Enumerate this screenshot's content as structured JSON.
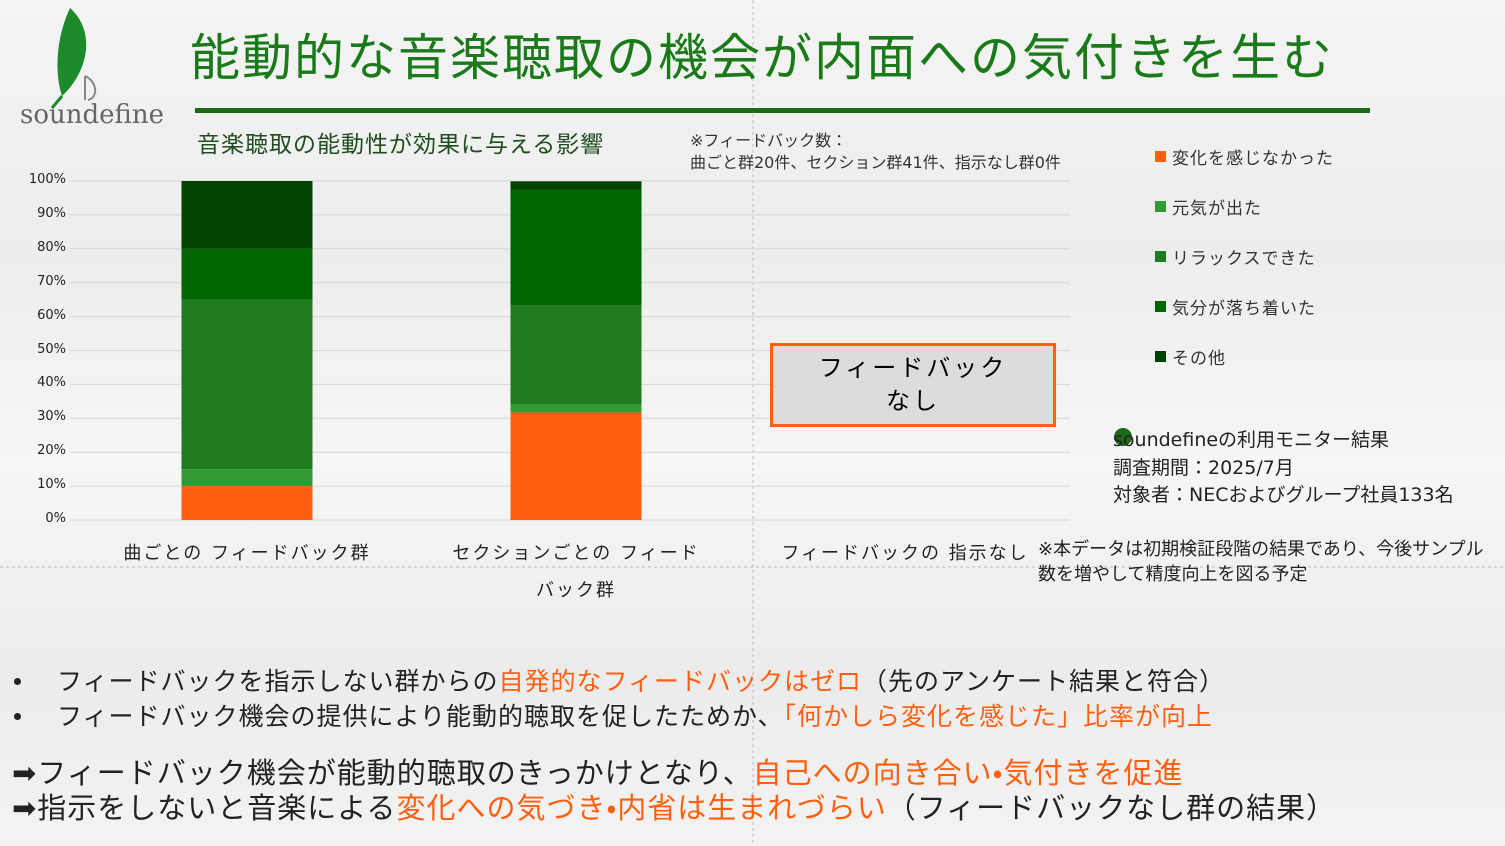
{
  "title": "能動的な音楽聴取の機会が内面への気付きを生む",
  "logo": "soundefine",
  "chart_data": {
    "type": "stacked-bar",
    "title": "音楽聴取の能動性が効果に与える影響",
    "note": "※フィードバック数：\n曲ごと群20件、セクション群41件、指示なし群0件",
    "categories": [
      "曲ごとの\nフィードバック群",
      "セクションごとの\nフィードバック群",
      "フィードバックの\n指示なし"
    ],
    "series": [
      {
        "name": "変化を感じなかった",
        "color": "#ff5f0f",
        "values": [
          10,
          31.7,
          null
        ]
      },
      {
        "name": "元気が出た",
        "color": "#339933",
        "values": [
          5,
          2.4,
          null
        ]
      },
      {
        "name": "リラックスできた",
        "color": "#1e7b1e",
        "values": [
          50,
          29.3,
          null
        ]
      },
      {
        "name": "気分が落ち着いた",
        "color": "#006400",
        "values": [
          15,
          34.1,
          null
        ]
      },
      {
        "name": "その他",
        "color": "#004400",
        "values": [
          20,
          2.4,
          null
        ]
      }
    ],
    "ylim": [
      0,
      100
    ],
    "yticks": [
      {
        "value": 0,
        "label": "0%"
      },
      {
        "value": 10,
        "label": "10%"
      },
      {
        "value": 20,
        "label": "20%"
      },
      {
        "value": 30,
        "label": "30%"
      },
      {
        "value": 40,
        "label": "40%"
      },
      {
        "value": 50,
        "label": "50%"
      },
      {
        "value": 60,
        "label": "60%"
      },
      {
        "value": 70,
        "label": "70%"
      },
      {
        "value": 80,
        "label": "80%"
      },
      {
        "value": 90,
        "label": "90%"
      },
      {
        "value": 100,
        "label": "100%"
      }
    ],
    "grid": true,
    "legend": "right",
    "annotation": "フィードバック\nなし"
  },
  "info": [
    "soundefineの利用モニター結果",
    "調査期間：2025/7月",
    "対象者：NECおよびグループ社員133名"
  ],
  "disclaimer": "※本データは初期検証段階の結果であり、今後サンプル数を増やして精度向上を図る予定",
  "bullets": [
    [
      {
        "text": "フィードバックを指示しない群からの"
      },
      {
        "text": "自発的なフィードバックはゼロ",
        "highlight": true
      },
      {
        "text": "（先のアンケート結果と符合）"
      }
    ],
    [
      {
        "text": "フィードバック機会の提供により能動的聴取を促したためか、"
      },
      {
        "text": "「何かしら変化を感じた」比率が向上",
        "highlight": true
      }
    ]
  ],
  "conclusions": [
    [
      {
        "text": "➡フィードバック機会が能動的聴取のきっかけとなり、"
      },
      {
        "text": "自己への向き合い・気付きを促進",
        "highlight": true
      }
    ],
    [
      {
        "text": "➡指示をしないと音楽による"
      },
      {
        "text": "変化への気づき・内省は生まれづらい",
        "highlight": true
      },
      {
        "text": "（フィードバックなし群の結果）"
      }
    ]
  ]
}
